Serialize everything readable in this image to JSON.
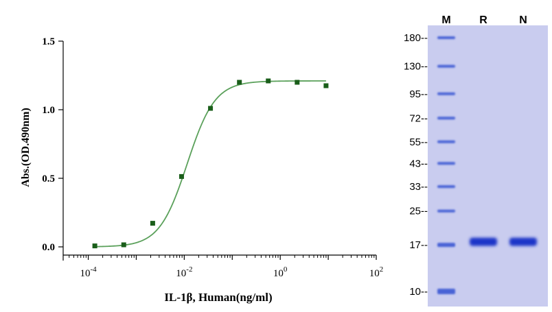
{
  "chart_data": [
    {
      "type": "scatter",
      "title": "",
      "xlabel": "IL-1β, Human(ng/ml)",
      "ylabel": "Abs.(OD.490nm)",
      "xscale": "log",
      "xlim": [
        3e-05,
        100
      ],
      "ylim": [
        -0.05,
        1.5
      ],
      "xticks": [
        {
          "value": 0.0001,
          "base": "10",
          "exp": "-4"
        },
        {
          "value": 0.01,
          "base": "10",
          "exp": "-2"
        },
        {
          "value": 1,
          "base": "10",
          "exp": "0"
        },
        {
          "value": 100,
          "base": "10",
          "exp": "2"
        }
      ],
      "yticks": [
        {
          "value": 0.0,
          "label": "0.0"
        },
        {
          "value": 0.5,
          "label": "0.5"
        },
        {
          "value": 1.0,
          "label": "1.0"
        },
        {
          "value": 1.5,
          "label": "1.5"
        }
      ],
      "series": [
        {
          "x": [
            0.000137,
            0.000549,
            0.0022,
            0.00879,
            0.0352,
            0.141,
            0.563,
            2.25,
            9.0
          ],
          "y": [
            0.007,
            0.015,
            0.172,
            0.513,
            1.01,
            1.2,
            1.21,
            1.2,
            1.175
          ]
        }
      ],
      "fit": {
        "bottom": 0.0,
        "top": 1.21,
        "ec50": 0.0115,
        "hill": 1.5
      },
      "grid": false,
      "legend": "none",
      "colors": {
        "marker": "#1a5e1a",
        "curve": "#5aa05a",
        "axis": "#000000"
      }
    },
    {
      "type": "gel",
      "lanes": [
        "M",
        "R",
        "N"
      ],
      "markers": [
        {
          "kda": 180,
          "label": "180--"
        },
        {
          "kda": 130,
          "label": "130--"
        },
        {
          "kda": 95,
          "label": "95--"
        },
        {
          "kda": 72,
          "label": "72--"
        },
        {
          "kda": 55,
          "label": "55--"
        },
        {
          "kda": 43,
          "label": "43--"
        },
        {
          "kda": 33,
          "label": "33--"
        },
        {
          "kda": 25,
          "label": "25--"
        },
        {
          "kda": 17,
          "label": "17--"
        },
        {
          "kda": 10,
          "label": "10--"
        }
      ],
      "bands": [
        {
          "lane": "R",
          "kda": 17.6
        },
        {
          "lane": "N",
          "kda": 17.6
        }
      ],
      "colors": {
        "background": "#c9ccef",
        "band": "#1a35c8",
        "marker": "#4a64d6"
      }
    }
  ]
}
